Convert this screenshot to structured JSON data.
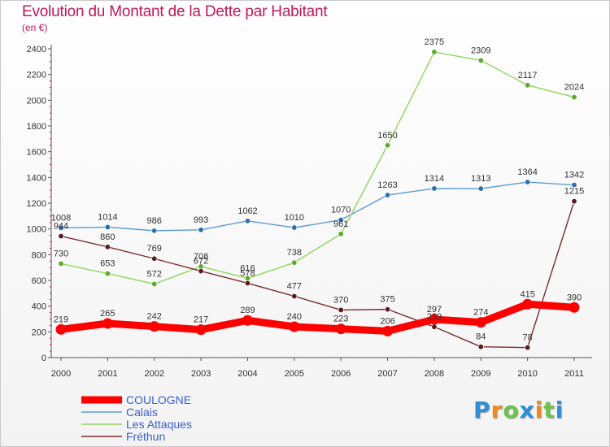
{
  "header": {
    "title": "Evolution du Montant de la Dette par Habitant",
    "subtitle": "(en €)"
  },
  "logo": {
    "letters": [
      "P",
      "r",
      "o",
      "x",
      "i",
      "t",
      "i"
    ],
    "colors": [
      "#2f8fd6",
      "#ee8a1f",
      "#6cc24a",
      "#2f8fd6",
      "#ee8a1f",
      "#6cc24a",
      "#2f8fd6"
    ]
  },
  "chart_data": {
    "type": "line",
    "title": "Evolution du Montant de la Dette par Habitant",
    "ylabel": "(en €)",
    "x": [
      "2000",
      "2001",
      "2002",
      "2003",
      "2004",
      "2005",
      "2006",
      "2007",
      "2008",
      "2009",
      "2010",
      "2011"
    ],
    "ylim": [
      0,
      2400
    ],
    "yticks": [
      0,
      200,
      400,
      600,
      800,
      1000,
      1200,
      1400,
      1600,
      1800,
      2000,
      2200,
      2400
    ],
    "grid": false,
    "legend": "bottom-left",
    "series": [
      {
        "name": "COULOGNE",
        "color": "#ff0000",
        "values": [
          219,
          265,
          242,
          217,
          289,
          240,
          223,
          206,
          297,
          274,
          415,
          390
        ]
      },
      {
        "name": "Calais",
        "color": "#5b9bd5",
        "values": [
          1008,
          1014,
          986,
          993,
          1062,
          1010,
          1070,
          1263,
          1314,
          1313,
          1364,
          1342
        ]
      },
      {
        "name": "Les Attaques",
        "color": "#8ed65a",
        "values": [
          730,
          653,
          572,
          708,
          616,
          738,
          961,
          1650,
          2375,
          2309,
          2117,
          2024
        ]
      },
      {
        "name": "Fréthun",
        "color": "#7a2d2d",
        "values": [
          944,
          860,
          769,
          672,
          578,
          477,
          370,
          375,
          239,
          84,
          78,
          1215
        ]
      }
    ]
  }
}
